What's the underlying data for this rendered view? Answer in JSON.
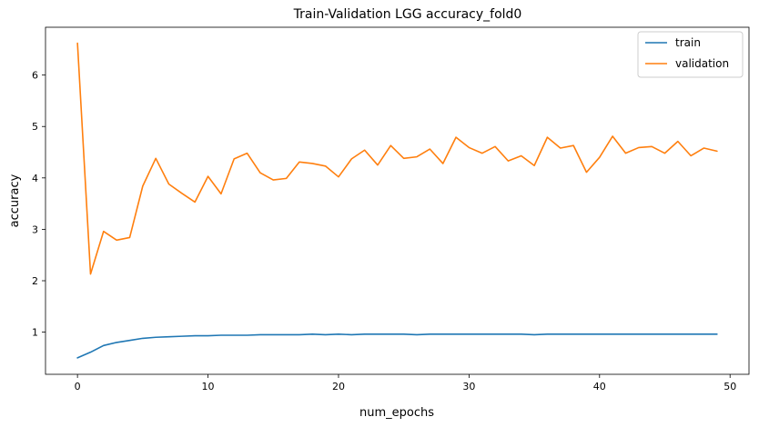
{
  "chart_data": {
    "type": "line",
    "title": "Train-Validation LGG accuracy_fold0",
    "xlabel": "num_epochs",
    "ylabel": "accuracy",
    "xlim": [
      -2.45,
      51.45
    ],
    "ylim": [
      0.18,
      6.93
    ],
    "x_ticks": [
      0,
      10,
      20,
      30,
      40,
      50
    ],
    "y_ticks": [
      1,
      2,
      3,
      4,
      5,
      6
    ],
    "grid": false,
    "legend": "top-right",
    "x": [
      0,
      1,
      2,
      3,
      4,
      5,
      6,
      7,
      8,
      9,
      10,
      11,
      12,
      13,
      14,
      15,
      16,
      17,
      18,
      19,
      20,
      21,
      22,
      23,
      24,
      25,
      26,
      27,
      28,
      29,
      30,
      31,
      32,
      33,
      34,
      35,
      36,
      37,
      38,
      39,
      40,
      41,
      42,
      43,
      44,
      45,
      46,
      47,
      48,
      49
    ],
    "series": [
      {
        "name": "train",
        "color": "#1f77b4",
        "values": [
          0.5,
          0.61,
          0.74,
          0.8,
          0.84,
          0.88,
          0.9,
          0.91,
          0.92,
          0.93,
          0.93,
          0.94,
          0.94,
          0.94,
          0.95,
          0.95,
          0.95,
          0.95,
          0.96,
          0.95,
          0.96,
          0.95,
          0.96,
          0.96,
          0.96,
          0.96,
          0.95,
          0.96,
          0.96,
          0.96,
          0.96,
          0.96,
          0.96,
          0.96,
          0.96,
          0.95,
          0.96,
          0.96,
          0.96,
          0.96,
          0.96,
          0.96,
          0.96,
          0.96,
          0.96,
          0.96,
          0.96,
          0.96,
          0.96,
          0.96
        ]
      },
      {
        "name": "validation",
        "color": "#ff7f0e",
        "values": [
          6.62,
          2.13,
          2.96,
          2.79,
          2.84,
          3.84,
          4.38,
          3.88,
          3.7,
          3.53,
          4.03,
          3.69,
          4.37,
          4.48,
          4.1,
          3.96,
          3.99,
          4.31,
          4.28,
          4.23,
          4.02,
          4.37,
          4.54,
          4.25,
          4.63,
          4.38,
          4.41,
          4.56,
          4.28,
          4.79,
          4.59,
          4.48,
          4.61,
          4.33,
          4.43,
          4.24,
          4.79,
          4.58,
          4.63,
          4.11,
          4.4,
          4.81,
          4.48,
          4.59,
          4.61,
          4.48,
          4.71,
          4.43,
          4.58,
          4.52
        ]
      }
    ]
  }
}
